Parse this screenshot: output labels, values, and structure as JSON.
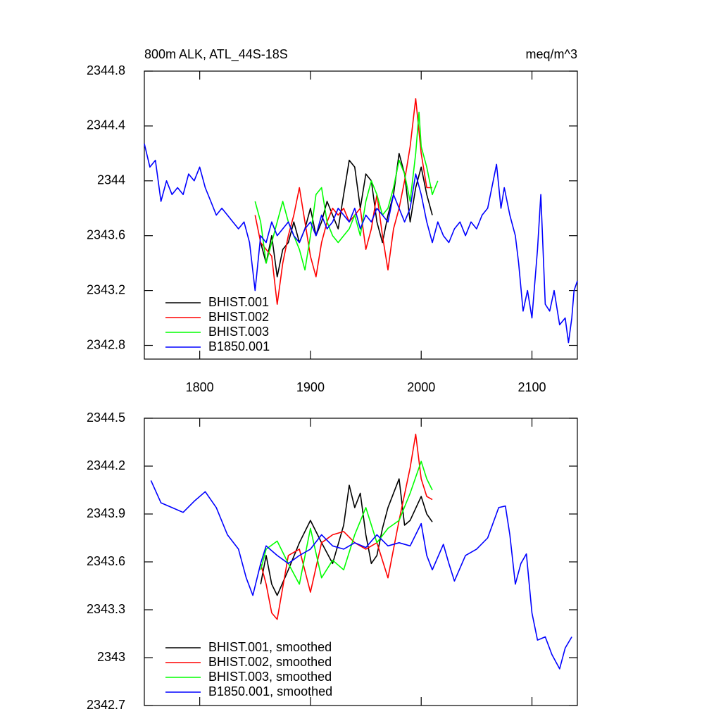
{
  "chart_data": [
    {
      "type": "line",
      "title": "800m ALK, ATL_44S-18S",
      "units": "meq/m^3",
      "xlim": [
        1750,
        2141
      ],
      "xticks": [
        1800,
        1900,
        2000,
        2100
      ],
      "ylim": [
        2342.7,
        2344.8
      ],
      "yticks": [
        2342.8,
        2343.2,
        2343.6,
        2344.0,
        2344.4,
        2344.8
      ],
      "legend": "lower left",
      "series": [
        {
          "name": "BHIST.001",
          "color": "#000000",
          "x": [
            1855,
            1860,
            1865,
            1870,
            1875,
            1880,
            1885,
            1890,
            1895,
            1900,
            1905,
            1910,
            1915,
            1920,
            1925,
            1930,
            1935,
            1940,
            1945,
            1950,
            1955,
            1960,
            1965,
            1970,
            1975,
            1980,
            1985,
            1990,
            1995,
            2000,
            2005,
            2010
          ],
          "values": [
            2343.55,
            2343.4,
            2343.6,
            2343.3,
            2343.5,
            2343.55,
            2343.7,
            2343.55,
            2343.65,
            2343.8,
            2343.6,
            2343.7,
            2343.85,
            2343.75,
            2343.65,
            2343.9,
            2344.15,
            2344.1,
            2343.8,
            2344.05,
            2344.0,
            2343.7,
            2343.55,
            2343.75,
            2343.9,
            2344.2,
            2344.05,
            2343.7,
            2343.95,
            2344.1,
            2343.9,
            2343.75
          ]
        },
        {
          "name": "BHIST.002",
          "color": "#ff0000",
          "x": [
            1850,
            1855,
            1860,
            1865,
            1870,
            1875,
            1880,
            1885,
            1890,
            1895,
            1900,
            1905,
            1910,
            1915,
            1920,
            1925,
            1930,
            1935,
            1940,
            1945,
            1950,
            1955,
            1960,
            1965,
            1970,
            1975,
            1980,
            1985,
            1990,
            1995,
            2000,
            2005,
            2010
          ],
          "values": [
            2343.75,
            2343.55,
            2343.5,
            2343.45,
            2343.1,
            2343.4,
            2343.6,
            2343.75,
            2343.95,
            2343.7,
            2343.45,
            2343.3,
            2343.55,
            2343.7,
            2343.8,
            2343.75,
            2343.8,
            2343.7,
            2343.75,
            2343.8,
            2343.5,
            2343.65,
            2343.9,
            2343.6,
            2343.35,
            2343.65,
            2343.8,
            2344.0,
            2344.25,
            2344.6,
            2344.2,
            2343.95,
            2343.95
          ]
        },
        {
          "name": "BHIST.003",
          "color": "#00ff00",
          "x": [
            1850,
            1855,
            1860,
            1865,
            1870,
            1875,
            1880,
            1885,
            1890,
            1895,
            1900,
            1905,
            1910,
            1915,
            1920,
            1925,
            1930,
            1935,
            1940,
            1945,
            1950,
            1955,
            1960,
            1965,
            1970,
            1975,
            1980,
            1985,
            1990,
            1995,
            1998,
            2000,
            2005,
            2010,
            2015
          ],
          "values": [
            2343.85,
            2343.7,
            2343.4,
            2343.55,
            2343.7,
            2343.85,
            2343.7,
            2343.6,
            2343.5,
            2343.35,
            2343.6,
            2343.9,
            2343.95,
            2343.7,
            2343.6,
            2343.55,
            2343.6,
            2343.65,
            2343.75,
            2343.6,
            2343.85,
            2344.0,
            2343.9,
            2343.75,
            2343.8,
            2343.95,
            2344.15,
            2344.05,
            2343.85,
            2344.2,
            2344.5,
            2344.25,
            2344.1,
            2343.9,
            2344.0
          ]
        },
        {
          "name": "B1850.001",
          "color": "#0000ff",
          "x": [
            1750,
            1755,
            1760,
            1765,
            1770,
            1775,
            1780,
            1785,
            1790,
            1795,
            1800,
            1805,
            1810,
            1815,
            1820,
            1825,
            1830,
            1835,
            1840,
            1845,
            1850,
            1855,
            1860,
            1865,
            1870,
            1875,
            1880,
            1885,
            1890,
            1895,
            1900,
            1905,
            1910,
            1915,
            1920,
            1925,
            1930,
            1935,
            1940,
            1945,
            1950,
            1955,
            1960,
            1965,
            1970,
            1975,
            1980,
            1985,
            1990,
            1995,
            2000,
            2005,
            2010,
            2015,
            2020,
            2025,
            2030,
            2035,
            2040,
            2045,
            2050,
            2055,
            2060,
            2065,
            2068,
            2072,
            2075,
            2080,
            2085,
            2088,
            2092,
            2096,
            2100,
            2105,
            2108,
            2112,
            2116,
            2120,
            2125,
            2130,
            2133,
            2136,
            2138,
            2141
          ],
          "values": [
            2344.27,
            2344.1,
            2344.15,
            2343.85,
            2344.0,
            2343.9,
            2343.95,
            2343.9,
            2344.05,
            2344.0,
            2344.1,
            2343.95,
            2343.85,
            2343.75,
            2343.8,
            2343.75,
            2343.7,
            2343.65,
            2343.7,
            2343.55,
            2343.2,
            2343.6,
            2343.55,
            2343.7,
            2343.6,
            2343.65,
            2343.7,
            2343.6,
            2343.55,
            2343.65,
            2343.7,
            2343.6,
            2343.75,
            2343.65,
            2343.7,
            2343.8,
            2343.75,
            2343.7,
            2343.8,
            2343.65,
            2343.75,
            2343.7,
            2343.8,
            2343.75,
            2343.7,
            2343.9,
            2343.8,
            2343.7,
            2343.8,
            2344.05,
            2343.9,
            2343.7,
            2343.55,
            2343.7,
            2343.6,
            2343.55,
            2343.65,
            2343.7,
            2343.6,
            2343.7,
            2343.65,
            2343.75,
            2343.8,
            2344.0,
            2344.12,
            2343.8,
            2343.95,
            2343.75,
            2343.6,
            2343.4,
            2343.05,
            2343.2,
            2343.0,
            2343.5,
            2343.9,
            2343.1,
            2343.05,
            2343.2,
            2342.95,
            2343.0,
            2342.82,
            2343.0,
            2343.2,
            2343.27
          ]
        }
      ]
    },
    {
      "type": "line",
      "xlim": [
        1750,
        2141
      ],
      "xticks": [
        1800,
        1900,
        2000,
        2100
      ],
      "ylim": [
        2342.7,
        2344.5
      ],
      "yticks": [
        2342.7,
        2343.0,
        2343.3,
        2343.6,
        2343.9,
        2344.2,
        2344.5
      ],
      "legend": "lower left",
      "series": [
        {
          "name": "BHIST.001, smoothed",
          "color": "#000000",
          "x": [
            1855,
            1860,
            1865,
            1870,
            1880,
            1890,
            1900,
            1910,
            1920,
            1930,
            1935,
            1940,
            1945,
            1950,
            1955,
            1960,
            1965,
            1970,
            1980,
            1985,
            1990,
            2000,
            2005,
            2010
          ],
          "values": [
            2343.46,
            2343.64,
            2343.46,
            2343.39,
            2343.55,
            2343.72,
            2343.86,
            2343.72,
            2343.59,
            2343.83,
            2344.08,
            2343.94,
            2344.03,
            2343.77,
            2343.59,
            2343.64,
            2343.81,
            2343.94,
            2344.12,
            2343.83,
            2343.86,
            2344.01,
            2343.9,
            2343.85
          ]
        },
        {
          "name": "BHIST.002, smoothed",
          "color": "#ff0000",
          "x": [
            1855,
            1860,
            1865,
            1870,
            1880,
            1890,
            1900,
            1910,
            1920,
            1930,
            1940,
            1950,
            1960,
            1970,
            1980,
            1990,
            1995,
            2000,
            2005,
            2010
          ],
          "values": [
            2343.59,
            2343.46,
            2343.28,
            2343.24,
            2343.64,
            2343.68,
            2343.41,
            2343.72,
            2343.77,
            2343.79,
            2343.72,
            2343.68,
            2343.72,
            2343.5,
            2343.86,
            2344.19,
            2344.4,
            2344.12,
            2344.01,
            2343.99
          ]
        },
        {
          "name": "BHIST.003, smoothed",
          "color": "#00ff00",
          "x": [
            1855,
            1860,
            1870,
            1880,
            1890,
            1900,
            1910,
            1920,
            1930,
            1940,
            1950,
            1960,
            1970,
            1980,
            1990,
            2000,
            2005,
            2010
          ],
          "values": [
            2343.55,
            2343.68,
            2343.73,
            2343.59,
            2343.46,
            2343.81,
            2343.5,
            2343.61,
            2343.55,
            2343.77,
            2343.94,
            2343.72,
            2343.81,
            2343.86,
            2344.03,
            2344.23,
            2344.12,
            2344.05
          ]
        },
        {
          "name": "B1850.001, smoothed",
          "color": "#0000ff",
          "x": [
            1756,
            1765,
            1775,
            1785,
            1795,
            1805,
            1815,
            1825,
            1835,
            1842,
            1848,
            1855,
            1860,
            1870,
            1880,
            1890,
            1900,
            1910,
            1920,
            1930,
            1940,
            1950,
            1960,
            1970,
            1980,
            1990,
            2000,
            2005,
            2010,
            2020,
            2025,
            2030,
            2040,
            2050,
            2060,
            2070,
            2076,
            2080,
            2085,
            2090,
            2095,
            2100,
            2105,
            2112,
            2118,
            2125,
            2130,
            2136
          ],
          "values": [
            2344.11,
            2343.97,
            2343.94,
            2343.91,
            2343.98,
            2344.04,
            2343.94,
            2343.77,
            2343.68,
            2343.5,
            2343.39,
            2343.59,
            2343.7,
            2343.64,
            2343.59,
            2343.64,
            2343.68,
            2343.77,
            2343.7,
            2343.68,
            2343.72,
            2343.69,
            2343.77,
            2343.7,
            2343.72,
            2343.7,
            2343.84,
            2343.64,
            2343.55,
            2343.71,
            2343.59,
            2343.48,
            2343.64,
            2343.68,
            2343.75,
            2343.94,
            2343.95,
            2343.77,
            2343.46,
            2343.59,
            2343.65,
            2343.28,
            2343.11,
            2343.13,
            2343.02,
            2342.93,
            2343.06,
            2343.13
          ]
        }
      ]
    }
  ]
}
